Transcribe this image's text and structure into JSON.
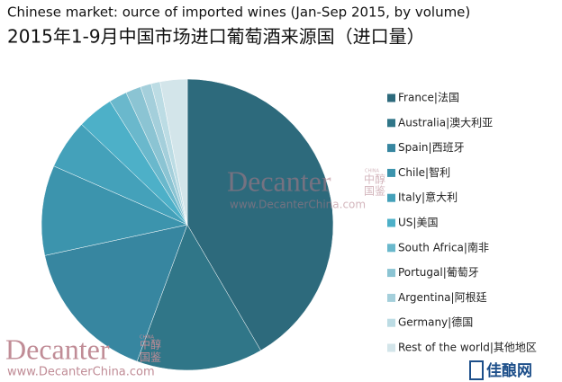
{
  "chart_data": {
    "type": "pie",
    "title": "Chinese market: ource of imported wines (Jan-Sep 2015, by volume)",
    "subtitle": "2015年1-9月中国市场进口葡萄酒来源国（进口量）",
    "categories": [
      "France|法国",
      "Australia|澳大利亚",
      "Spain|西班牙",
      "Chile|智利",
      "Italy|意大利",
      "US|美国",
      "South Africa|南非",
      "Portugal|葡萄牙",
      "Argentina|阿根廷",
      "Germany|德国",
      "Rest of the world|其他地区"
    ],
    "values": [
      41.6,
      14,
      16,
      10,
      5.5,
      4,
      2,
      1.7,
      1.2,
      1,
      3
    ],
    "colors": [
      "#2d6a7c",
      "#307688",
      "#3786a0",
      "#3c94ad",
      "#44a1ba",
      "#4db0c8",
      "#6ab8cc",
      "#8bc4d3",
      "#a4cfdb",
      "#bcdce4",
      "#d3e5ea"
    ],
    "legend": "right"
  },
  "watermark": {
    "brand": "Decanter",
    "china": "CHINA",
    "cn_top": "中醇",
    "cn_bottom": "国鉴",
    "url": "www.DecanterChina.com",
    "logo": "佳酿网"
  }
}
